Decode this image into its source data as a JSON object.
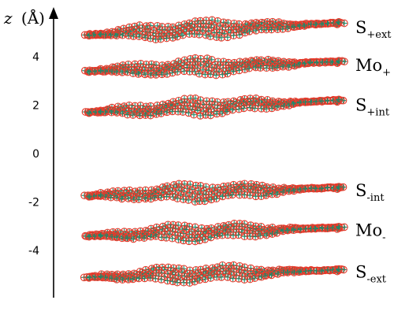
{
  "chart_data": {
    "type": "scatter",
    "title": "",
    "xlabel": "",
    "ylabel": "z (Å)",
    "ylabel_var": "z",
    "ylabel_unit": "(Å)",
    "ylim": [
      -6.0,
      6.0
    ],
    "y_ticks": [
      {
        "value": 4,
        "label": "4"
      },
      {
        "value": 2,
        "label": "2"
      },
      {
        "value": 0,
        "label": "0"
      },
      {
        "value": -2,
        "label": "-2"
      },
      {
        "value": -4,
        "label": "-4"
      }
    ],
    "grid": false,
    "legend": "none",
    "marker": {
      "shape": "circle with cross",
      "edge_color": "#e8392a",
      "cross_color": "#1a8a6a"
    },
    "layers": [
      {
        "base": "S",
        "sub": "+ext",
        "z_left": 4.9,
        "z_right": 5.4
      },
      {
        "base": "Mo",
        "sub": "+",
        "z_left": 3.4,
        "z_right": 3.8
      },
      {
        "base": "S",
        "sub": "+int",
        "z_left": 1.7,
        "z_right": 2.2
      },
      {
        "base": "S",
        "sub": "-int",
        "z_left": -1.75,
        "z_right": -1.4
      },
      {
        "base": "Mo",
        "sub": "-",
        "z_left": -3.4,
        "z_right": -3.05
      },
      {
        "base": "S",
        "sub": "-ext",
        "z_left": -5.1,
        "z_right": -4.8
      }
    ]
  }
}
